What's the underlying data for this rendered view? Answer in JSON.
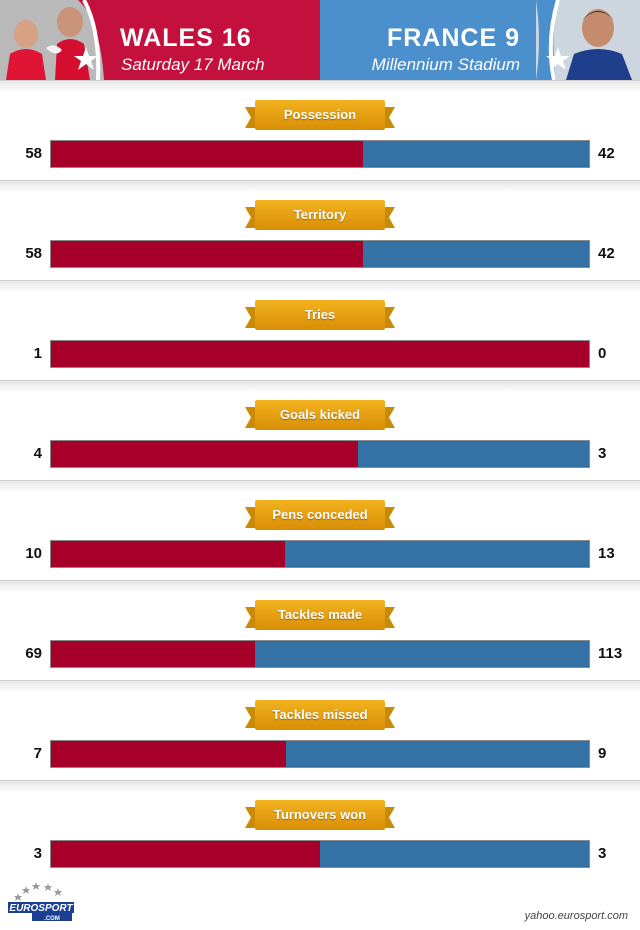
{
  "header": {
    "home_score": "WALES 16",
    "date": "Saturday 17 March",
    "away_score": "FRANCE 9",
    "venue": "Millennium Stadium",
    "home_color": "#c3103c",
    "away_color": "#4b8fcc"
  },
  "chart_data": {
    "type": "bar",
    "subtype": "stacked-horizontal-comparison",
    "categories": [
      "Possession",
      "Territory",
      "Tries",
      "Goals kicked",
      "Pens conceded",
      "Tackles made",
      "Tackles missed",
      "Turnovers won"
    ],
    "series": [
      {
        "values": [
          "58",
          "58",
          "1",
          "4",
          "10",
          "69",
          "7",
          "3"
        ],
        "color": "#a6002a"
      },
      {
        "values": [
          "42",
          "42",
          "0",
          "3",
          "13",
          "113",
          "9",
          "3"
        ],
        "color": "#3472a6"
      }
    ],
    "grid": false,
    "legend": "none"
  },
  "footer": {
    "logo_text": "EUROSPORT",
    "logo_sub": ".COM",
    "credit": "yahoo.eurosport.com"
  }
}
